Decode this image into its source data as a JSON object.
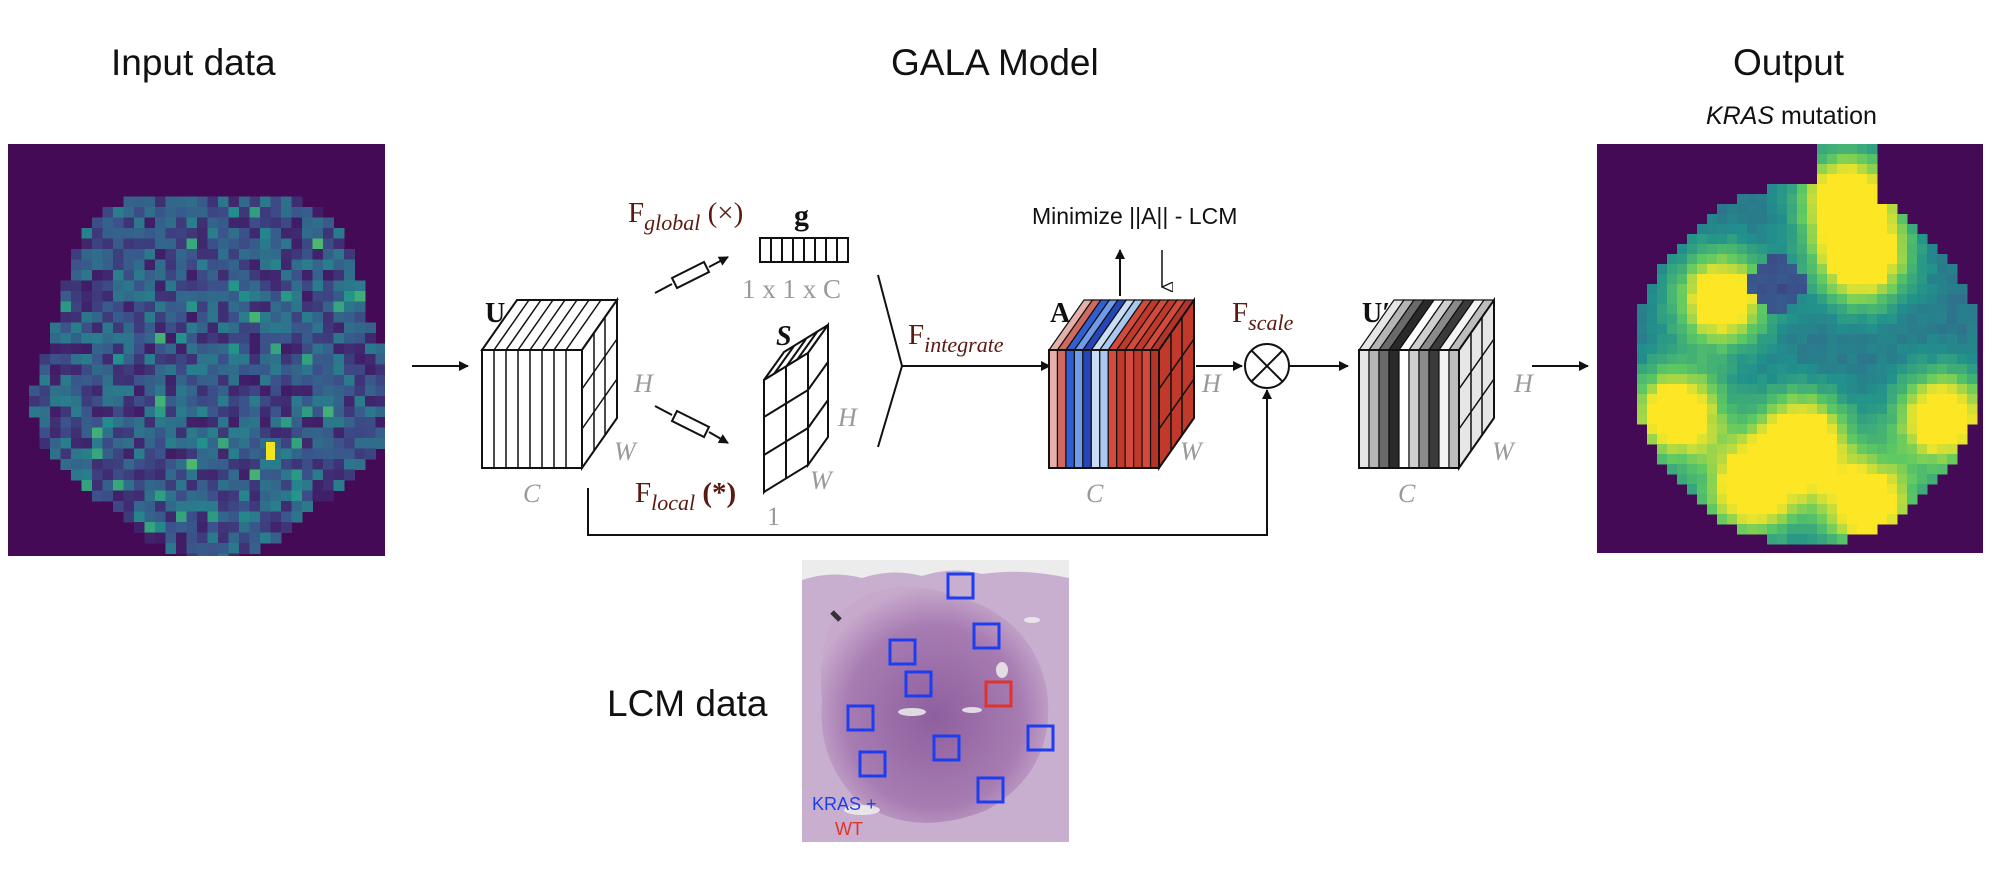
{
  "titles": {
    "input": "Input data",
    "model": "GALA Model",
    "output": "Output",
    "output_sub_italic": "KRAS",
    "output_sub_rest": " mutation",
    "lcm": "LCM data"
  },
  "diagram": {
    "f_global": "F",
    "f_global_sub": "global",
    "f_global_op": " (×)",
    "g_label": "g",
    "g_dims": "1 x 1 x C",
    "s_label": "S",
    "s_one": "1",
    "f_local": "F",
    "f_local_sub": "local",
    "f_local_op": " (*)",
    "f_integrate": "F",
    "f_integrate_sub": "integrate",
    "minimize": "Minimize ||A|| - LCM",
    "u_label": "U",
    "a_label": "A",
    "u_prime_label": "U′",
    "f_scale": "F",
    "f_scale_sub": "scale",
    "dim_h": "H",
    "dim_w": "W",
    "dim_c": "C"
  },
  "lcm_legend": {
    "kras": "KRAS +",
    "wt": "WT"
  },
  "colors": {
    "heatmap_bg": "#440a56",
    "viridis_dark": "#45226e",
    "viridis_teal": "#2a8a8c",
    "viridis_green": "#3fbc74",
    "viridis_yellow": "#f2e51d",
    "math_label": "#5a1a12",
    "dim_gray": "#999999",
    "lcm_blue": "#1c3ef0",
    "lcm_red": "#e2322a",
    "tissue": "#b78fbf"
  }
}
